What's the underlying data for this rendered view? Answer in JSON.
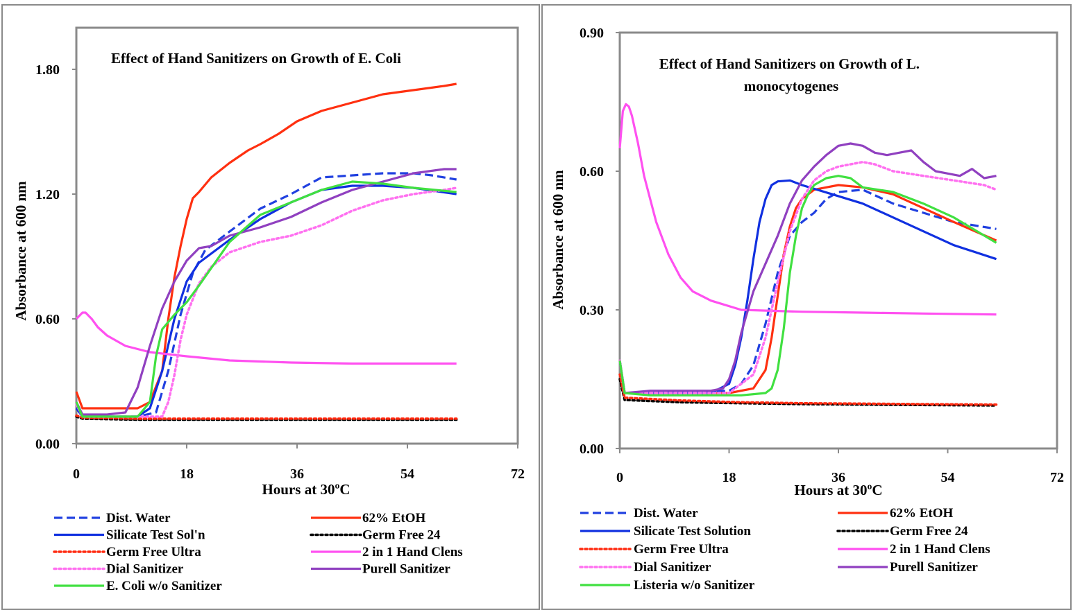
{
  "chart_data": [
    {
      "type": "line",
      "title": "Effect of  Hand Sanitizers on Growth of E. Coli",
      "xlabel": "Hours at 30ºC",
      "ylabel": "Absorbance at 600 nm",
      "xlim": [
        0,
        72
      ],
      "ylim": [
        0,
        2.0
      ],
      "xticks": [
        "0",
        "18",
        "36",
        "54",
        "72"
      ],
      "xtick_values": [
        0,
        18,
        36,
        54,
        72
      ],
      "yticks": [
        "0.00",
        "0.60",
        "1.20",
        "1.80"
      ],
      "ytick_values": [
        0,
        0.6,
        1.2,
        1.8
      ],
      "legend_placement": "below",
      "series": [
        {
          "name": "Dist. Water",
          "color": "#2040e0",
          "dash": "dashed",
          "x": [
            0,
            1,
            5,
            10,
            13,
            15,
            17,
            19,
            21,
            25,
            30,
            35,
            40,
            45,
            50,
            55,
            58,
            62
          ],
          "y": [
            0.19,
            0.13,
            0.13,
            0.13,
            0.15,
            0.35,
            0.62,
            0.82,
            0.93,
            1.02,
            1.13,
            1.2,
            1.28,
            1.29,
            1.3,
            1.3,
            1.29,
            1.27
          ]
        },
        {
          "name": "62% EtOH",
          "color": "#ff3010",
          "dash": "solid",
          "x": [
            0,
            1,
            5,
            10,
            12,
            14,
            15,
            16,
            17,
            18,
            19,
            20,
            22,
            25,
            28,
            30,
            33,
            36,
            40,
            45,
            50,
            55,
            60,
            62
          ],
          "y": [
            0.25,
            0.17,
            0.17,
            0.17,
            0.2,
            0.35,
            0.6,
            0.8,
            0.95,
            1.08,
            1.18,
            1.21,
            1.28,
            1.35,
            1.41,
            1.44,
            1.49,
            1.55,
            1.6,
            1.64,
            1.68,
            1.7,
            1.72,
            1.73
          ]
        },
        {
          "name": "Silicate Test Sol'n",
          "color": "#1030e0",
          "dash": "solid",
          "x": [
            0,
            1,
            5,
            10,
            12,
            14,
            16,
            18,
            20,
            25,
            30,
            35,
            40,
            45,
            50,
            55,
            62
          ],
          "y": [
            0.17,
            0.13,
            0.13,
            0.13,
            0.17,
            0.35,
            0.6,
            0.78,
            0.87,
            0.98,
            1.08,
            1.16,
            1.22,
            1.24,
            1.24,
            1.23,
            1.2
          ]
        },
        {
          "name": "Germ Free 24",
          "color": "#000000",
          "dash": "dotted",
          "x": [
            0,
            1,
            10,
            20,
            30,
            40,
            50,
            62
          ],
          "y": [
            0.13,
            0.12,
            0.115,
            0.115,
            0.115,
            0.115,
            0.115,
            0.115
          ]
        },
        {
          "name": "Germ Free Ultra",
          "color": "#ff2a10",
          "dash": "dotted",
          "x": [
            0,
            1,
            10,
            20,
            30,
            40,
            50,
            62
          ],
          "y": [
            0.135,
            0.125,
            0.12,
            0.12,
            0.12,
            0.12,
            0.12,
            0.12
          ]
        },
        {
          "name": "2 in 1 Hand Clens",
          "color": "#ff50f0",
          "dash": "solid",
          "x": [
            0,
            1,
            1.5,
            2.5,
            3.5,
            5,
            8,
            12,
            18,
            25,
            35,
            45,
            55,
            62
          ],
          "y": [
            0.6,
            0.63,
            0.63,
            0.6,
            0.56,
            0.52,
            0.47,
            0.44,
            0.42,
            0.4,
            0.39,
            0.385,
            0.385,
            0.385
          ]
        },
        {
          "name": "Dial Sanitizer",
          "color": "#ff70f0",
          "dash": "dotted",
          "x": [
            0,
            1,
            10,
            14,
            15,
            16,
            17,
            18,
            20,
            22,
            25,
            30,
            35,
            40,
            45,
            50,
            55,
            60,
            62
          ],
          "y": [
            0.19,
            0.13,
            0.13,
            0.13,
            0.2,
            0.33,
            0.5,
            0.62,
            0.77,
            0.85,
            0.92,
            0.97,
            1.0,
            1.05,
            1.12,
            1.17,
            1.2,
            1.22,
            1.23
          ]
        },
        {
          "name": "Purell Sanitizer",
          "color": "#9040c0",
          "dash": "solid",
          "x": [
            0,
            1,
            5,
            8,
            10,
            12,
            14,
            16,
            18,
            20,
            22,
            25,
            30,
            35,
            40,
            45,
            50,
            55,
            60,
            62
          ],
          "y": [
            0.2,
            0.14,
            0.14,
            0.15,
            0.27,
            0.47,
            0.65,
            0.78,
            0.88,
            0.94,
            0.95,
            1.0,
            1.04,
            1.09,
            1.16,
            1.22,
            1.26,
            1.3,
            1.32,
            1.32
          ]
        },
        {
          "name": "E. Coli w/o Sanitizer",
          "color": "#40e040",
          "dash": "solid",
          "x": [
            0,
            1,
            5,
            10,
            12,
            13,
            14,
            16,
            18,
            20,
            25,
            30,
            35,
            40,
            45,
            50,
            55,
            62
          ],
          "y": [
            0.2,
            0.13,
            0.13,
            0.13,
            0.2,
            0.42,
            0.55,
            0.62,
            0.68,
            0.76,
            0.97,
            1.1,
            1.16,
            1.22,
            1.26,
            1.25,
            1.23,
            1.21
          ]
        }
      ]
    },
    {
      "type": "line",
      "title": "Effect of  Hand Sanitizers on Growth of L.\nmonocytogenes",
      "xlabel": "Hours at 30ºC",
      "ylabel": "Absorbance at 600 nm",
      "xlim": [
        0,
        72
      ],
      "ylim": [
        0,
        0.9
      ],
      "xticks": [
        "0",
        "18",
        "36",
        "54",
        "72"
      ],
      "xtick_values": [
        0,
        18,
        36,
        54,
        72
      ],
      "yticks": [
        "0.00",
        "0.30",
        "0.60",
        "0.90"
      ],
      "ytick_values": [
        0,
        0.3,
        0.6,
        0.9
      ],
      "legend_placement": "below",
      "series": [
        {
          "name": "Dist. Water",
          "color": "#2040e0",
          "dash": "dashed",
          "x": [
            0,
            0.8,
            5,
            18,
            20,
            22,
            24,
            26,
            28,
            30,
            32,
            34,
            36,
            40,
            45,
            50,
            55,
            62
          ],
          "y": [
            0.19,
            0.12,
            0.12,
            0.125,
            0.14,
            0.18,
            0.27,
            0.38,
            0.46,
            0.49,
            0.51,
            0.54,
            0.555,
            0.56,
            0.53,
            0.51,
            0.49,
            0.475
          ]
        },
        {
          "name": "62% EtOH",
          "color": "#ff3010",
          "dash": "solid",
          "x": [
            0,
            0.8,
            5,
            18,
            22,
            24,
            25,
            26,
            27,
            28,
            29,
            30,
            32,
            34,
            36,
            40,
            45,
            50,
            55,
            62
          ],
          "y": [
            0.19,
            0.12,
            0.12,
            0.12,
            0.13,
            0.17,
            0.24,
            0.33,
            0.42,
            0.48,
            0.52,
            0.54,
            0.56,
            0.565,
            0.57,
            0.565,
            0.55,
            0.52,
            0.49,
            0.45
          ]
        },
        {
          "name": "Silicate Test Solution",
          "color": "#1030e0",
          "dash": "solid",
          "x": [
            0,
            0.8,
            5,
            15,
            18,
            19,
            20,
            21,
            22,
            23,
            24,
            25,
            26,
            28,
            30,
            35,
            40,
            45,
            50,
            55,
            62
          ],
          "y": [
            0.19,
            0.12,
            0.12,
            0.12,
            0.14,
            0.18,
            0.24,
            0.32,
            0.41,
            0.49,
            0.54,
            0.57,
            0.578,
            0.58,
            0.57,
            0.55,
            0.53,
            0.5,
            0.47,
            0.44,
            0.41
          ]
        },
        {
          "name": "Germ Free 24",
          "color": "#000000",
          "dash": "dotted",
          "x": [
            0,
            0.8,
            10,
            20,
            30,
            40,
            50,
            62
          ],
          "y": [
            0.15,
            0.105,
            0.1,
            0.098,
            0.096,
            0.095,
            0.094,
            0.093
          ]
        },
        {
          "name": "Germ Free Ultra",
          "color": "#ff2a10",
          "dash": "dotted",
          "x": [
            0,
            0.8,
            10,
            20,
            30,
            40,
            50,
            62
          ],
          "y": [
            0.16,
            0.11,
            0.104,
            0.1,
            0.098,
            0.097,
            0.096,
            0.095
          ]
        },
        {
          "name": "2 in 1 Hand Clens",
          "color": "#ff50f0",
          "dash": "solid",
          "x": [
            0,
            0.5,
            1,
            1.5,
            2,
            3,
            4,
            6,
            8,
            10,
            12,
            15,
            20,
            30,
            40,
            50,
            62
          ],
          "y": [
            0.65,
            0.73,
            0.745,
            0.74,
            0.72,
            0.66,
            0.59,
            0.49,
            0.42,
            0.37,
            0.34,
            0.32,
            0.3,
            0.296,
            0.294,
            0.292,
            0.29
          ]
        },
        {
          "name": "Dial Sanitizer",
          "color": "#ff70f0",
          "dash": "dotted",
          "x": [
            0,
            0.8,
            5,
            18,
            22,
            24,
            26,
            28,
            30,
            32,
            34,
            36,
            40,
            42,
            45,
            50,
            55,
            60,
            62
          ],
          "y": [
            0.19,
            0.12,
            0.12,
            0.12,
            0.16,
            0.24,
            0.36,
            0.47,
            0.54,
            0.58,
            0.6,
            0.61,
            0.62,
            0.615,
            0.6,
            0.59,
            0.58,
            0.57,
            0.56
          ]
        },
        {
          "name": "Purell Sanitizer",
          "color": "#9040c0",
          "dash": "solid",
          "x": [
            0,
            0.8,
            5,
            15,
            17,
            18,
            19,
            20,
            22,
            24,
            26,
            28,
            30,
            32,
            34,
            36,
            38,
            40,
            42,
            44,
            46,
            48,
            50,
            52,
            54,
            56,
            58,
            60,
            62
          ],
          "y": [
            0.19,
            0.12,
            0.125,
            0.125,
            0.13,
            0.15,
            0.19,
            0.25,
            0.34,
            0.4,
            0.46,
            0.53,
            0.58,
            0.61,
            0.635,
            0.655,
            0.66,
            0.655,
            0.64,
            0.635,
            0.64,
            0.645,
            0.62,
            0.6,
            0.595,
            0.59,
            0.605,
            0.585,
            0.59
          ]
        },
        {
          "name": "Listeria w/o Sanitizer",
          "color": "#40e040",
          "dash": "solid",
          "x": [
            0,
            0.8,
            5,
            20,
            24,
            25,
            26,
            27,
            28,
            29,
            30,
            31,
            32,
            34,
            36,
            38,
            40,
            45,
            50,
            55,
            62
          ],
          "y": [
            0.19,
            0.12,
            0.115,
            0.115,
            0.12,
            0.13,
            0.17,
            0.26,
            0.38,
            0.46,
            0.52,
            0.55,
            0.57,
            0.585,
            0.59,
            0.585,
            0.565,
            0.555,
            0.53,
            0.5,
            0.445
          ]
        }
      ]
    }
  ]
}
